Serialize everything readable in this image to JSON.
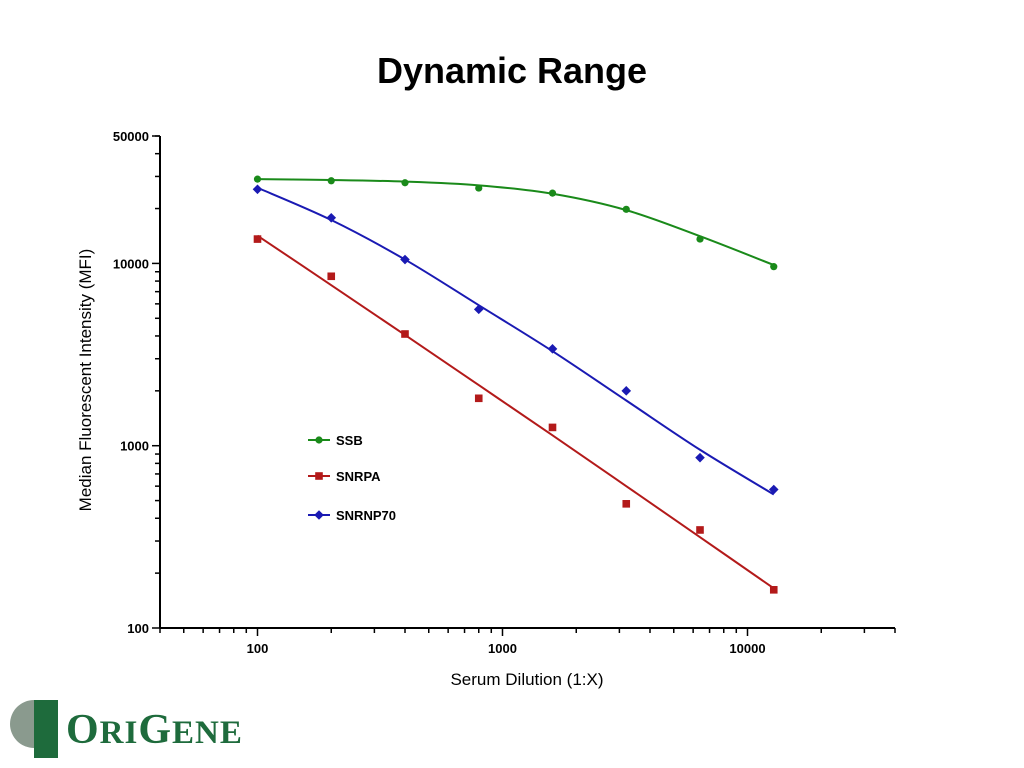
{
  "slide": {
    "title": "Dynamic Range"
  },
  "logo": {
    "o": "O",
    "ri": "RI",
    "g": "G",
    "ene": "ENE",
    "colors": {
      "green": "#1e6b3c",
      "grey": "#8a9a8e"
    }
  },
  "chart_data": {
    "type": "scatter",
    "x_scale": "log",
    "y_scale": "log",
    "xlabel": "Serum Dilution (1:X)",
    "ylabel": "Median Fluorescent Intensity (MFI)",
    "xlim": [
      40,
      40000
    ],
    "ylim": [
      100,
      50000
    ],
    "x_ticks": [
      {
        "value": 100,
        "label": "100"
      },
      {
        "value": 1000,
        "label": "1000"
      },
      {
        "value": 10000,
        "label": "10000"
      }
    ],
    "y_ticks": [
      {
        "value": 100,
        "label": "100"
      },
      {
        "value": 1000,
        "label": "1000"
      },
      {
        "value": 10000,
        "label": "10000"
      },
      {
        "value": 50000,
        "label": "50000"
      }
    ],
    "grid": false,
    "legend": {
      "position": "lower-left"
    },
    "series": [
      {
        "name": "SSB",
        "color": "#1a8a1a",
        "marker": "circle",
        "x": [
          100,
          200,
          400,
          800,
          1600,
          3200,
          6400,
          12800
        ],
        "y": [
          29000,
          28400,
          27700,
          25900,
          24300,
          19800,
          13600,
          9600
        ],
        "fit_y": [
          29000,
          28700,
          28100,
          26800,
          24100,
          19600,
          14100,
          9800
        ]
      },
      {
        "name": "SNRPA",
        "color": "#b31a1a",
        "marker": "square",
        "x": [
          100,
          200,
          400,
          800,
          1600,
          3200,
          6400,
          12800
        ],
        "y": [
          13600,
          8500,
          4100,
          1820,
          1260,
          480,
          345,
          162
        ],
        "fit_y": [
          14200,
          7600,
          4050,
          2150,
          1140,
          600,
          315,
          165
        ]
      },
      {
        "name": "SNRNP70",
        "color": "#1a1ab3",
        "marker": "diamond",
        "x": [
          100,
          200,
          400,
          800,
          1600,
          3200,
          6400,
          12800
        ],
        "y": [
          25500,
          17800,
          10500,
          5600,
          3400,
          2000,
          860,
          575
        ],
        "fit_y": [
          26000,
          17300,
          10500,
          5900,
          3300,
          1770,
          950,
          540
        ]
      }
    ]
  }
}
